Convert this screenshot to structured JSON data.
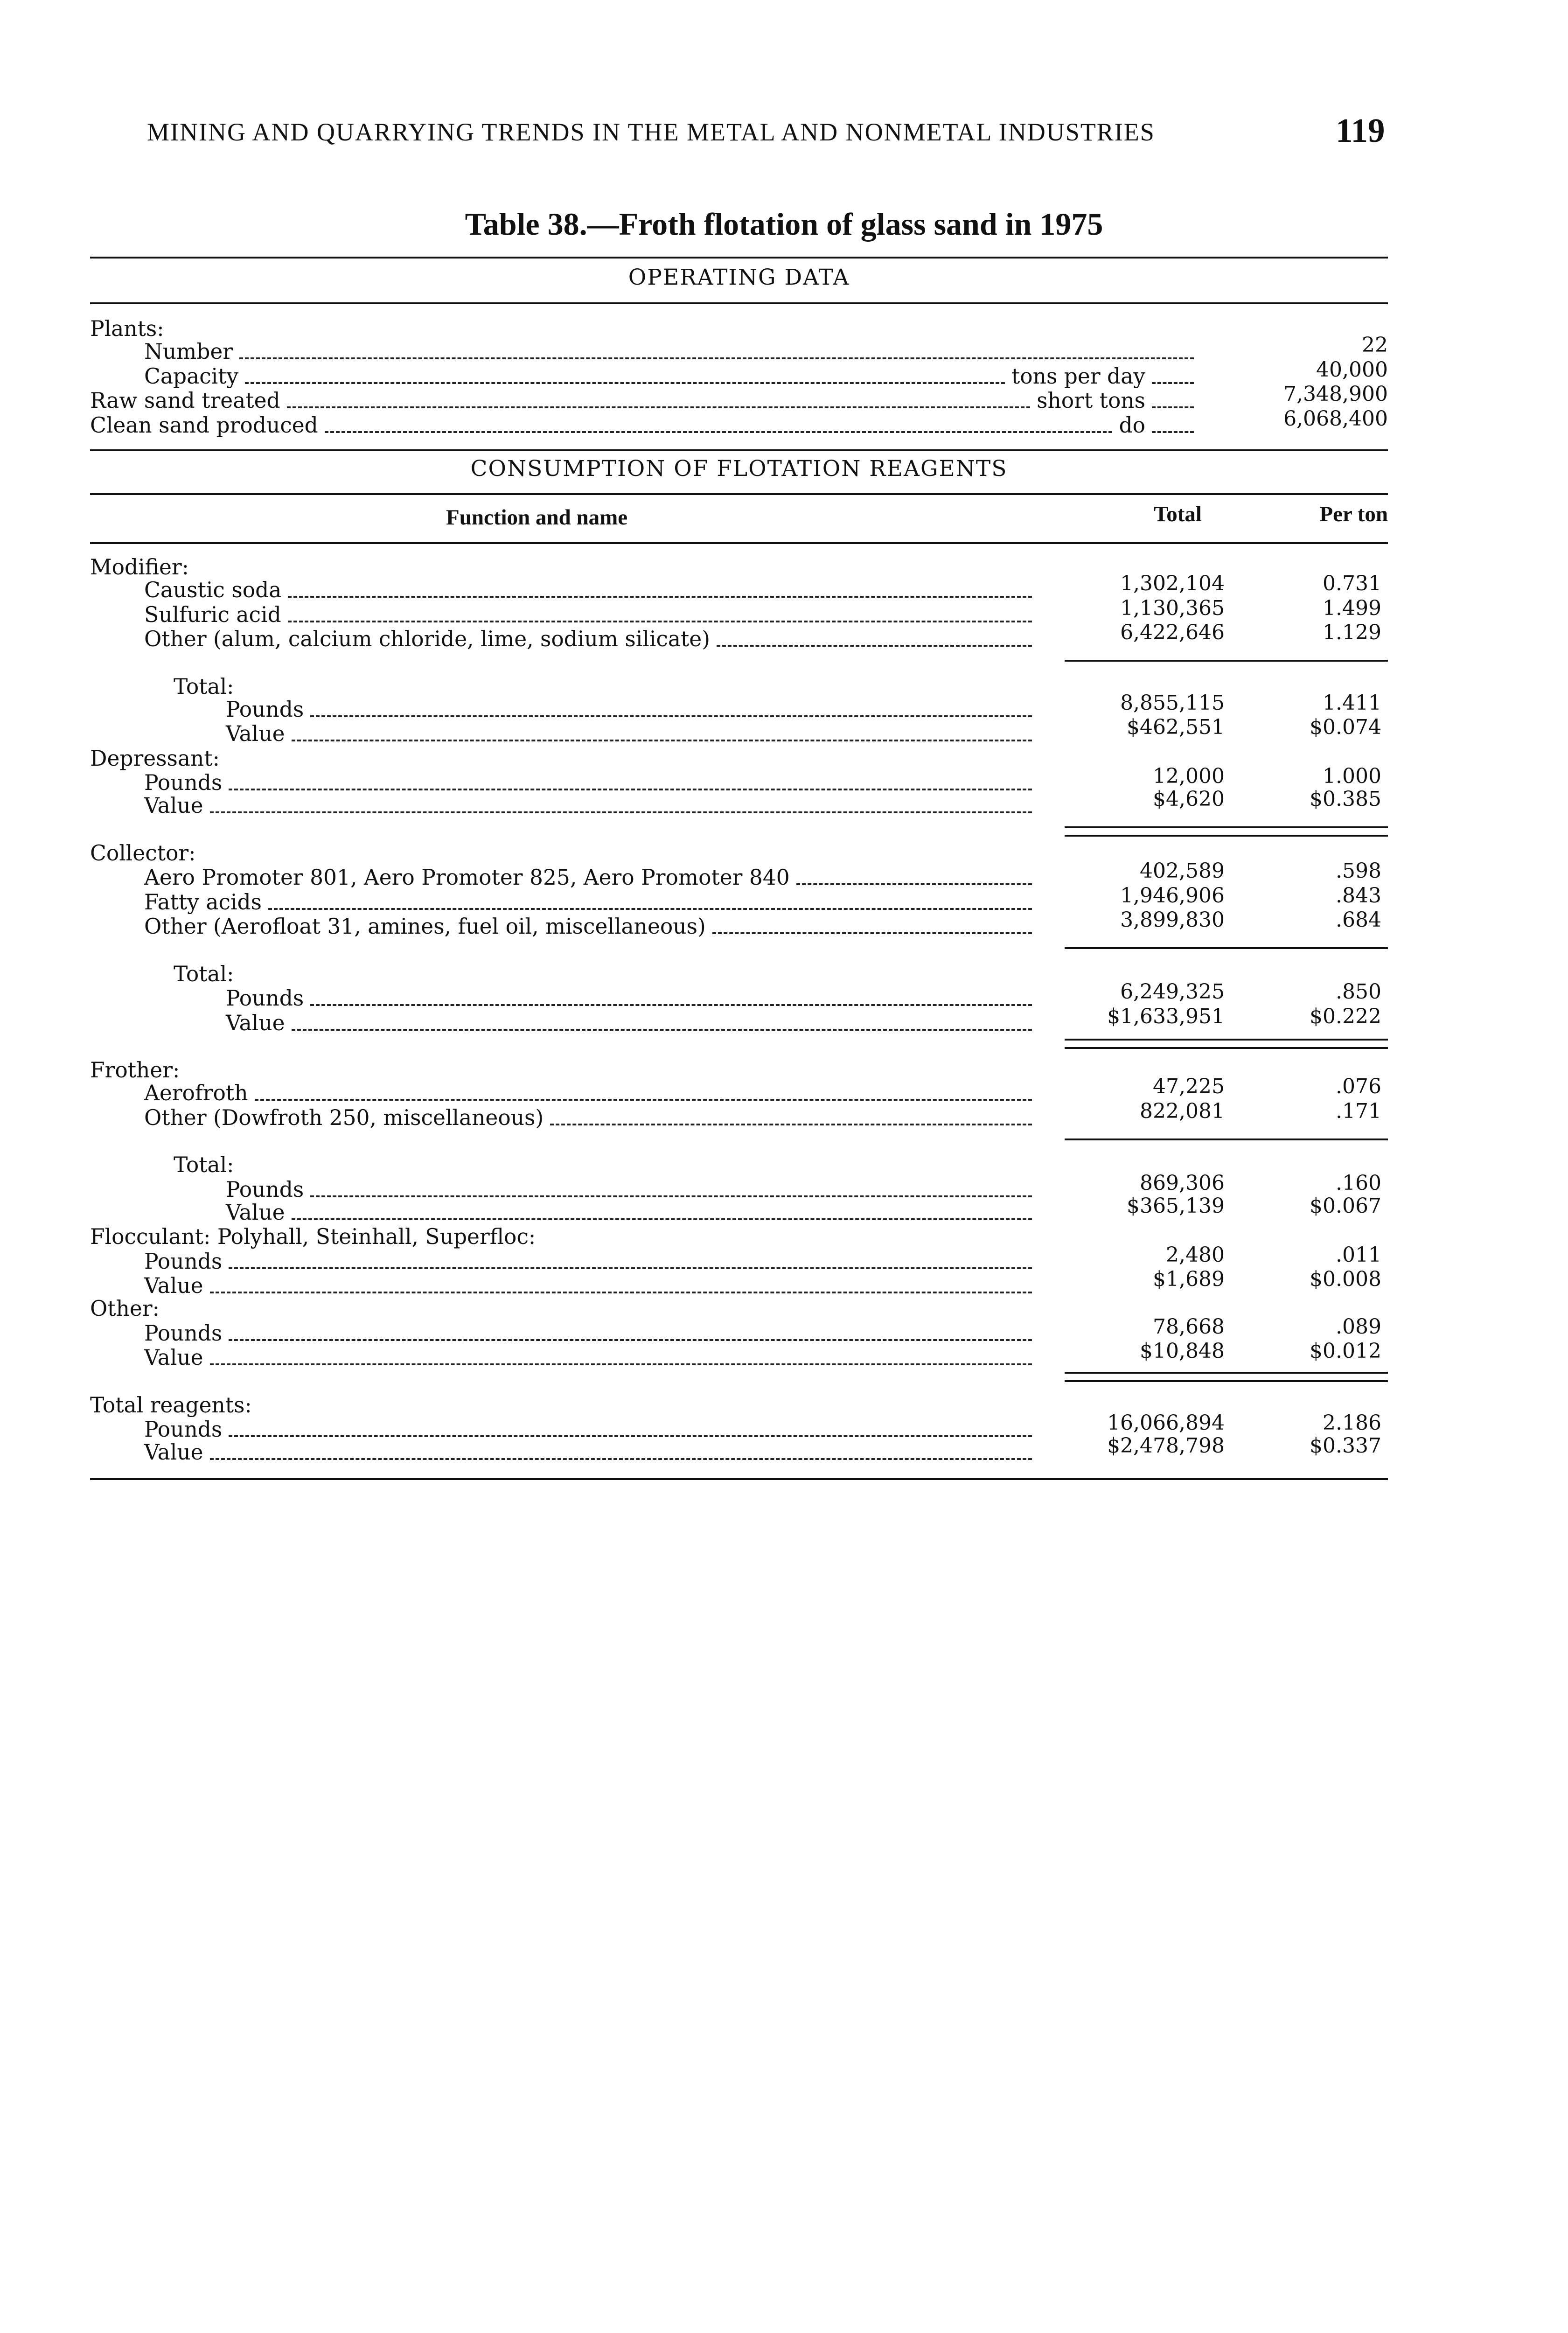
{
  "running_head": "MINING AND QUARRYING TRENDS IN THE METAL AND NONMETAL INDUSTRIES",
  "page_number": "119",
  "table_title": "Table 38.—Froth flotation of glass sand in 1975",
  "operating_data": {
    "heading": "OPERATING DATA",
    "rows": [
      {
        "label": "Plants:",
        "indent": 0,
        "unit": "",
        "value": ""
      },
      {
        "label": "Number",
        "indent": 1,
        "unit": "",
        "value": "22"
      },
      {
        "label": "Capacity",
        "indent": 1,
        "unit": "tons per day",
        "value": "40,000"
      },
      {
        "label": "Raw sand treated",
        "indent": 0,
        "unit": "short tons",
        "value": "7,348,900"
      },
      {
        "label": "Clean sand produced",
        "indent": 0,
        "unit": "do",
        "value": "6,068,400"
      }
    ]
  },
  "reagents": {
    "heading": "CONSUMPTION OF FLOTATION REAGENTS",
    "columns": {
      "function": "Function and name",
      "total": "Total",
      "per_ton": "Per ton"
    },
    "rows": [
      {
        "label": "Modifier:",
        "indent": 0,
        "total": "",
        "per_ton": ""
      },
      {
        "label": "Caustic soda",
        "indent": 1,
        "total": "1,302,104",
        "per_ton": "0.731"
      },
      {
        "label": "Sulfuric acid",
        "indent": 1,
        "total": "1,130,365",
        "per_ton": "1.499"
      },
      {
        "label": "Other (alum, calcium chloride, lime, sodium silicate)",
        "indent": 1,
        "total": "6,422,646",
        "per_ton": "1.129"
      },
      {
        "label": "Total:",
        "indent": 2,
        "total": "",
        "per_ton": ""
      },
      {
        "label": "Pounds",
        "indent": 3,
        "total": "8,855,115",
        "per_ton": "1.411"
      },
      {
        "label": "Value",
        "indent": 3,
        "total": "$462,551",
        "per_ton": "$0.074"
      },
      {
        "label": "Depressant:",
        "indent": 0,
        "total": "",
        "per_ton": ""
      },
      {
        "label": "Pounds",
        "indent": 1,
        "total": "12,000",
        "per_ton": "1.000"
      },
      {
        "label": "Value",
        "indent": 1,
        "total": "$4,620",
        "per_ton": "$0.385"
      },
      {
        "label": "Collector:",
        "indent": 0,
        "total": "",
        "per_ton": ""
      },
      {
        "label": "Aero Promoter 801, Aero Promoter 825, Aero Promoter 840",
        "indent": 1,
        "total": "402,589",
        "per_ton": ".598"
      },
      {
        "label": "Fatty acids",
        "indent": 1,
        "total": "1,946,906",
        "per_ton": ".843"
      },
      {
        "label": "Other (Aerofloat 31, amines, fuel oil, miscellaneous)",
        "indent": 1,
        "total": "3,899,830",
        "per_ton": ".684"
      },
      {
        "label": "Total:",
        "indent": 2,
        "total": "",
        "per_ton": ""
      },
      {
        "label": "Pounds",
        "indent": 3,
        "total": "6,249,325",
        "per_ton": ".850"
      },
      {
        "label": "Value",
        "indent": 3,
        "total": "$1,633,951",
        "per_ton": "$0.222"
      },
      {
        "label": "Frother:",
        "indent": 0,
        "total": "",
        "per_ton": ""
      },
      {
        "label": "Aerofroth",
        "indent": 1,
        "total": "47,225",
        "per_ton": ".076"
      },
      {
        "label": "Other (Dowfroth 250, miscellaneous)",
        "indent": 1,
        "total": "822,081",
        "per_ton": ".171"
      },
      {
        "label": "Total:",
        "indent": 2,
        "total": "",
        "per_ton": ""
      },
      {
        "label": "Pounds",
        "indent": 3,
        "total": "869,306",
        "per_ton": ".160"
      },
      {
        "label": "Value",
        "indent": 3,
        "total": "$365,139",
        "per_ton": "$0.067"
      },
      {
        "label": "Flocculant:  Polyhall, Steinhall, Superfloc:",
        "indent": 0,
        "total": "",
        "per_ton": ""
      },
      {
        "label": "Pounds",
        "indent": 1,
        "total": "2,480",
        "per_ton": ".011"
      },
      {
        "label": "Value",
        "indent": 1,
        "total": "$1,689",
        "per_ton": "$0.008"
      },
      {
        "label": "Other:",
        "indent": 0,
        "total": "",
        "per_ton": ""
      },
      {
        "label": "Pounds",
        "indent": 1,
        "total": "78,668",
        "per_ton": ".089"
      },
      {
        "label": "Value",
        "indent": 1,
        "total": "$10,848",
        "per_ton": "$0.012"
      },
      {
        "label": "Total reagents:",
        "indent": 0,
        "total": "",
        "per_ton": ""
      },
      {
        "label": "Pounds",
        "indent": 1,
        "total": "16,066,894",
        "per_ton": "2.186"
      },
      {
        "label": "Value",
        "indent": 1,
        "total": "$2,478,798",
        "per_ton": "$0.337"
      }
    ]
  }
}
